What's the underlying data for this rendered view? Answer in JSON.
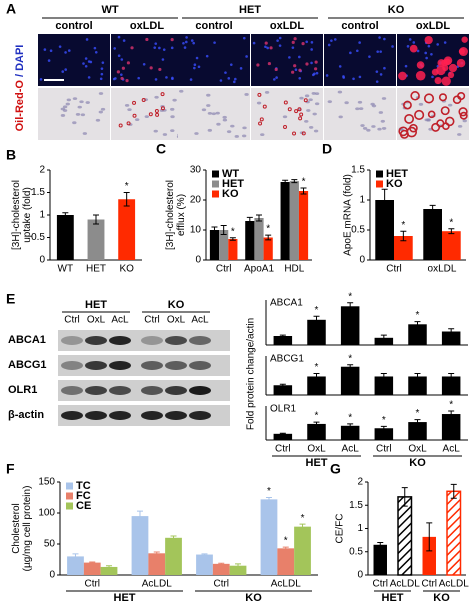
{
  "panel_labels": [
    "A",
    "B",
    "C",
    "D",
    "E",
    "F",
    "G"
  ],
  "panel_a": {
    "groups": [
      "WT",
      "HET",
      "KO"
    ],
    "conditions": [
      "control",
      "oxLDL"
    ],
    "stain_labels": [
      "Oil-Red-O",
      "/ DAPI"
    ]
  },
  "panel_e": {
    "groups": [
      "HET",
      "KO"
    ],
    "lanes": [
      "Ctrl",
      "OxL",
      "AcL",
      "Ctrl",
      "OxL",
      "AcL"
    ],
    "proteins": [
      "ABCA1",
      "ABCG1",
      "OLR1",
      "β-actin"
    ],
    "ylabel": "Fold protein change/actin"
  },
  "chart_data": [
    {
      "type": "bar",
      "ylabel": [
        "[3H]-cholesterol",
        "uptake (fold)"
      ],
      "categories": [
        "WT",
        "HET",
        "KO"
      ],
      "values": [
        1.0,
        0.9,
        1.35
      ],
      "errors": [
        0.05,
        0.1,
        0.15
      ],
      "colors": [
        "#000000",
        "#8c8c8c",
        "#ff2a00"
      ],
      "significance": [
        null,
        null,
        "*"
      ],
      "ylim": [
        0,
        2
      ],
      "yticks": [
        0,
        0.5,
        1,
        1.5,
        2
      ]
    },
    {
      "type": "bar",
      "ylabel": [
        "[3H]-cholesterol",
        "efflux (%)"
      ],
      "categories": [
        "Ctrl",
        "ApoA1",
        "HDL"
      ],
      "legend": "top-left",
      "series": [
        {
          "name": "WT",
          "color": "#000000",
          "values": [
            10,
            13,
            26
          ],
          "errors": [
            1,
            1.2,
            0.6
          ],
          "significance": [
            null,
            null,
            null
          ]
        },
        {
          "name": "HET",
          "color": "#8c8c8c",
          "values": [
            10,
            14,
            26.3
          ],
          "errors": [
            1.5,
            1,
            0.5
          ],
          "significance": [
            null,
            null,
            null
          ]
        },
        {
          "name": "KO",
          "color": "#ff2a00",
          "values": [
            7,
            7.5,
            23
          ],
          "errors": [
            0.4,
            0.8,
            1
          ],
          "significance": [
            "*",
            "*",
            "*"
          ]
        }
      ],
      "ylim": [
        0,
        30
      ],
      "yticks": [
        0,
        10,
        20,
        30
      ]
    },
    {
      "type": "bar",
      "ylabel": [
        "ApoE mRNA (fold)"
      ],
      "categories": [
        "Ctrl",
        "oxLDL"
      ],
      "legend": "top-left",
      "series": [
        {
          "name": "HET",
          "color": "#000000",
          "values": [
            1.0,
            0.85
          ],
          "errors": [
            0.18,
            0.06
          ],
          "significance": [
            null,
            null
          ]
        },
        {
          "name": "KO",
          "color": "#ff2a00",
          "values": [
            0.4,
            0.48
          ],
          "errors": [
            0.08,
            0.04
          ],
          "significance": [
            "*",
            "*"
          ]
        }
      ],
      "ylim": [
        0,
        1.5
      ],
      "yticks": [
        0,
        0.5,
        1,
        1.5
      ]
    },
    {
      "type": "bar",
      "title": "ABCA1",
      "values": [
        1,
        2.8,
        4.3,
        0.8,
        2.3,
        1.5
      ],
      "errors": [
        0.1,
        0.4,
        0.4,
        0.3,
        0.3,
        0.3
      ],
      "color": "#000000",
      "significance": [
        null,
        "*",
        "*",
        null,
        "*",
        null
      ],
      "ylim": [
        0,
        5
      ]
    },
    {
      "type": "bar",
      "title": "ABCG1",
      "values": [
        1,
        1.9,
        2.9,
        1.9,
        1.9,
        1.9
      ],
      "errors": [
        0.1,
        0.3,
        0.2,
        0.3,
        0.3,
        0.3
      ],
      "color": "#000000",
      "significance": [
        null,
        "*",
        "*",
        null,
        null,
        null
      ],
      "ylim": [
        0,
        4
      ]
    },
    {
      "type": "bar",
      "title": "OLR1",
      "categories": [
        "Ctrl",
        "OxL",
        "AcL",
        "Ctrl",
        "OxL",
        "AcL"
      ],
      "groups": [
        "HET",
        "KO"
      ],
      "values": [
        1,
        2.6,
        2.3,
        1.9,
        2.9,
        4.2
      ],
      "errors": [
        0.1,
        0.3,
        0.3,
        0.3,
        0.4,
        0.5
      ],
      "color": "#000000",
      "significance": [
        null,
        "*",
        "*",
        "*",
        "*",
        "*"
      ],
      "ylim": [
        0,
        5.5
      ]
    },
    {
      "type": "bar",
      "ylabel": [
        "Cholesterol",
        "(µg/mg cell protein)"
      ],
      "categories": [
        "Ctrl",
        "AcLDL",
        "Ctrl",
        "AcLDL"
      ],
      "groups": [
        "HET",
        "KO"
      ],
      "legend": "top-left",
      "series": [
        {
          "name": "TC",
          "color": "#a9c4ea",
          "values": [
            30,
            95,
            33,
            122
          ],
          "errors": [
            4,
            8,
            1,
            3
          ],
          "significance": [
            null,
            null,
            null,
            "*"
          ]
        },
        {
          "name": "FC",
          "color": "#e8806a",
          "values": [
            20,
            35,
            18,
            43
          ],
          "errors": [
            1,
            2,
            1,
            2
          ],
          "significance": [
            null,
            null,
            null,
            "*"
          ]
        },
        {
          "name": "CE",
          "color": "#a3c55a",
          "values": [
            13,
            60,
            15,
            78
          ],
          "errors": [
            2,
            3,
            3,
            4
          ],
          "significance": [
            null,
            null,
            null,
            "*"
          ]
        }
      ],
      "ylim": [
        0,
        150
      ],
      "yticks": [
        0,
        50,
        100,
        150
      ]
    },
    {
      "type": "bar",
      "ylabel": [
        "CE/FC"
      ],
      "categories": [
        "Ctrl",
        "AcLDL",
        "Ctrl",
        "AcLDL"
      ],
      "groups": [
        "HET",
        "KO"
      ],
      "values": [
        0.65,
        1.68,
        0.82,
        1.8
      ],
      "errors": [
        0.05,
        0.2,
        0.3,
        0.15
      ],
      "colors": [
        "#000000",
        "#000000",
        "#ff2a00",
        "#ff2a00"
      ],
      "hatched": [
        false,
        true,
        false,
        true
      ],
      "ylim": [
        0,
        2
      ],
      "yticks": [
        0,
        0.5,
        1,
        1.5,
        2
      ]
    }
  ]
}
